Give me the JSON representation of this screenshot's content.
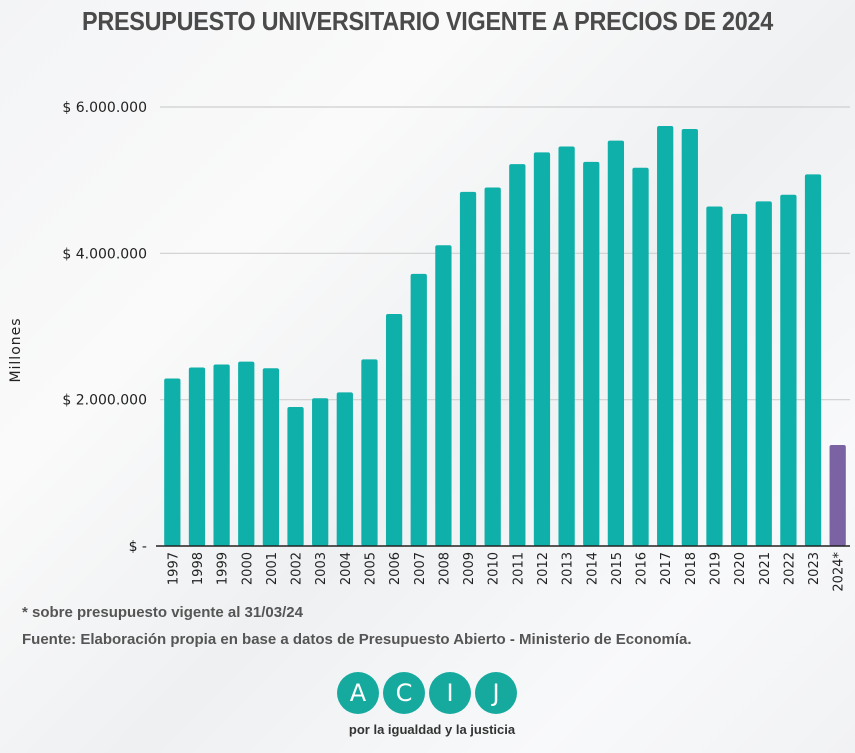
{
  "title": "PRESUPUESTO UNIVERSITARIO VIGENTE A PRECIOS DE  2024",
  "notes": {
    "asterisk": "* sobre presupuesto vigente al 31/03/24",
    "source": "Fuente: Elaboración propia en base a datos de Presupuesto Abierto - Ministerio de Economía."
  },
  "logo": {
    "letters": [
      "A",
      "C",
      "I",
      "J"
    ],
    "tagline": "por la igualdad y la justicia"
  },
  "colors": {
    "bar": "#0fb0a9",
    "highlight": "#7b63a3",
    "grid": "#cfcfcf",
    "axis": "#222222",
    "logo": "#16aa9f"
  },
  "chart_data": {
    "type": "bar",
    "title": "PRESUPUESTO UNIVERSITARIO VIGENTE A PRECIOS DE  2024",
    "xlabel": "",
    "ylabel": "Millones",
    "ylim": [
      0,
      6000000
    ],
    "yticks": [
      0,
      2000000,
      4000000,
      6000000
    ],
    "ytick_labels": [
      "$ -",
      "$ 2.000.000",
      "$ 4.000.000",
      "$ 6.000.000"
    ],
    "grid": true,
    "categories": [
      "1997",
      "1998",
      "1999",
      "2000",
      "2001",
      "2002",
      "2003",
      "2004",
      "2005",
      "2006",
      "2007",
      "2008",
      "2009",
      "2010",
      "2011",
      "2012",
      "2013",
      "2014",
      "2015",
      "2016",
      "2017",
      "2018",
      "2019",
      "2020",
      "2021",
      "2022",
      "2023",
      "2024*"
    ],
    "values": [
      2290000,
      2440000,
      2480000,
      2520000,
      2430000,
      1900000,
      2020000,
      2100000,
      2550000,
      3170000,
      3720000,
      4110000,
      4840000,
      4900000,
      5220000,
      5380000,
      5460000,
      5250000,
      5540000,
      5170000,
      5740000,
      5700000,
      4640000,
      4540000,
      4710000,
      4800000,
      5080000,
      1380000
    ],
    "highlight_index": 27
  }
}
